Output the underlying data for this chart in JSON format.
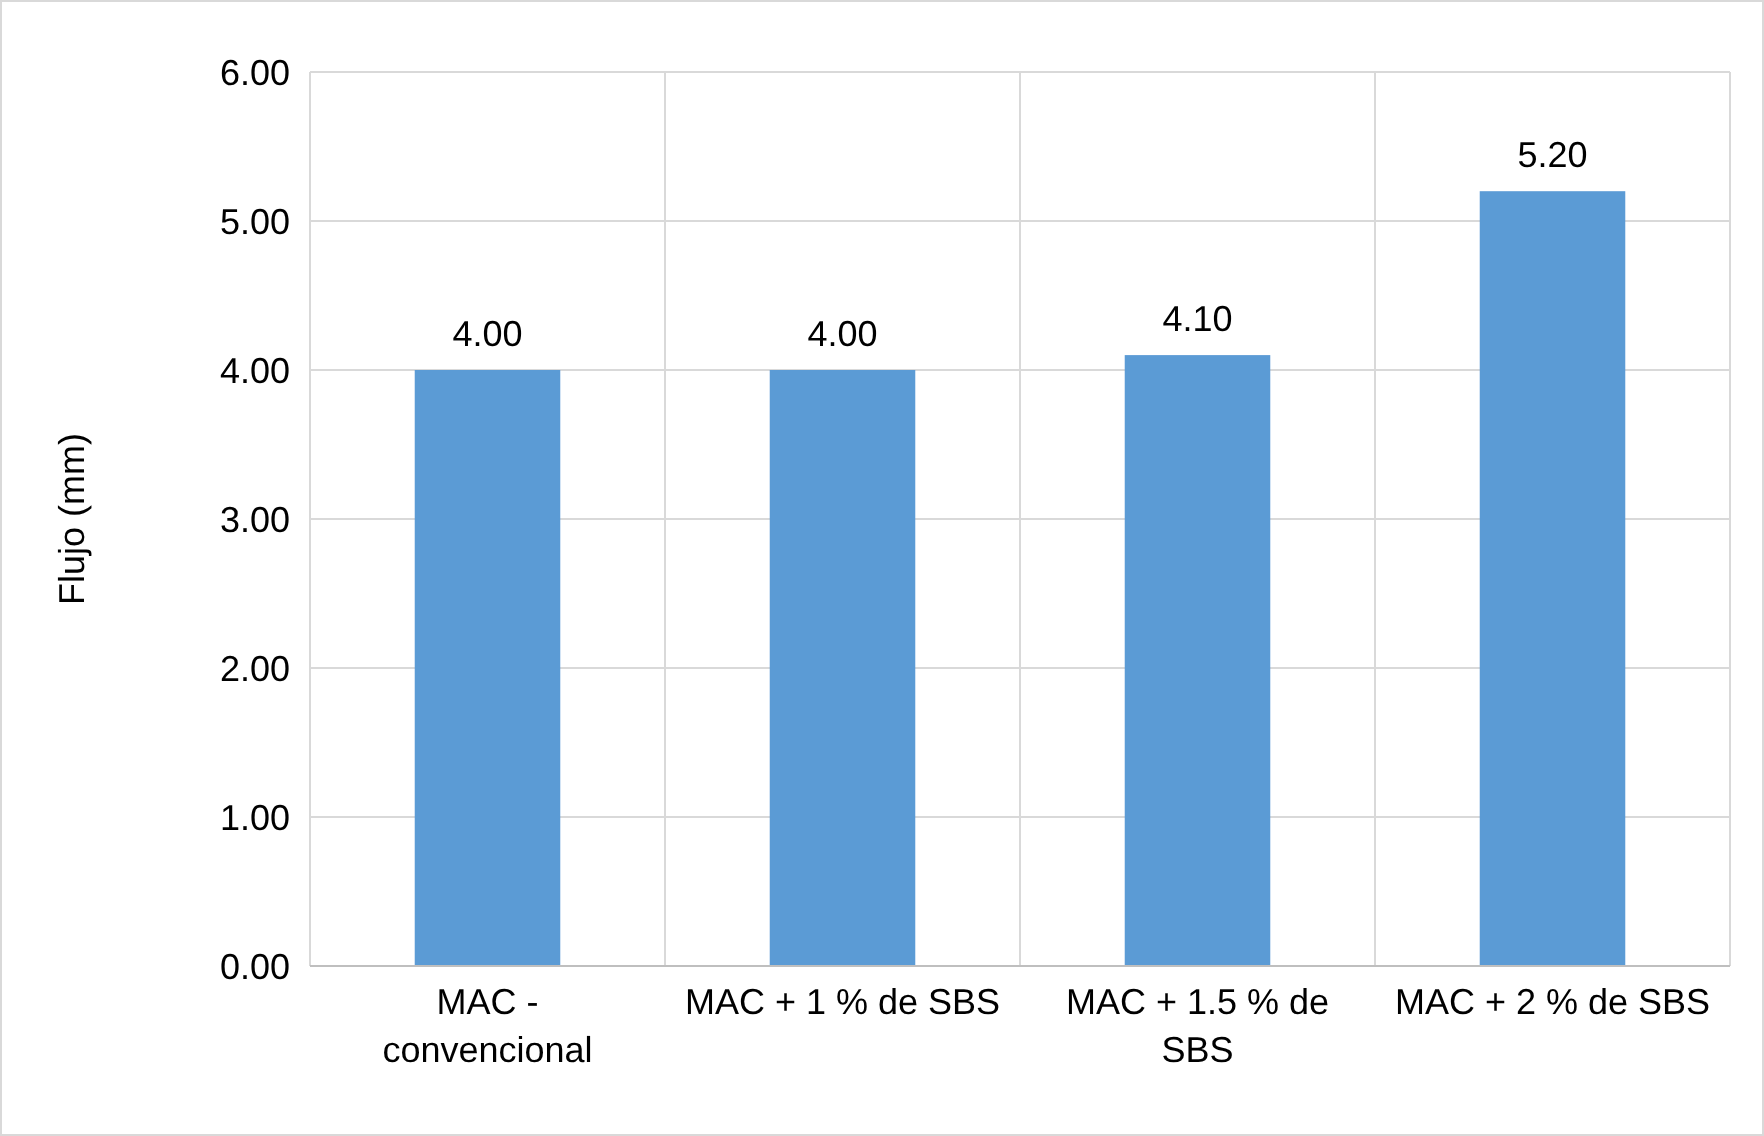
{
  "chart_data": {
    "type": "bar",
    "ylabel": "Flujo (mm)",
    "categories": [
      "MAC - convencional",
      "MAC + 1 % de SBS",
      "MAC + 1.5 % de SBS",
      "MAC + 2 % de SBS"
    ],
    "values": [
      4.0,
      4.0,
      4.1,
      5.2
    ],
    "value_labels": [
      "4.00",
      "4.00",
      "4.10",
      "5.20"
    ],
    "color": "#5b9bd5",
    "ylim": [
      0,
      6
    ],
    "yticks": [
      {
        "value": 0,
        "label": "0.00"
      },
      {
        "value": 1,
        "label": "1.00"
      },
      {
        "value": 2,
        "label": "2.00"
      },
      {
        "value": 3,
        "label": "3.00"
      },
      {
        "value": 4,
        "label": "4.00"
      },
      {
        "value": 5,
        "label": "5.00"
      },
      {
        "value": 6,
        "label": "6.00"
      }
    ],
    "grid": true
  }
}
